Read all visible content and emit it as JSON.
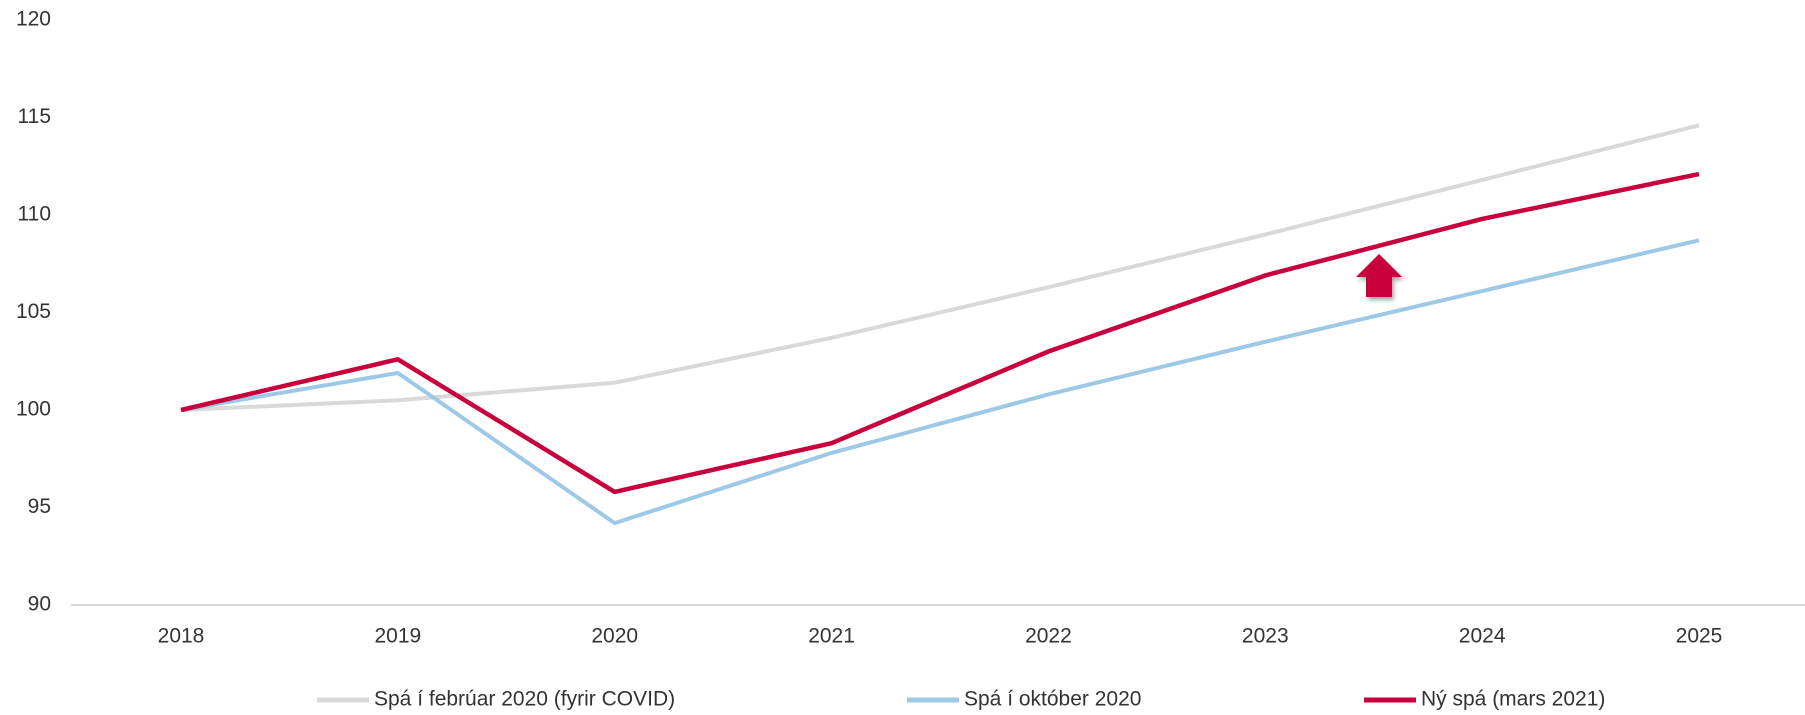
{
  "chart_data": {
    "type": "line",
    "categories": [
      "2018",
      "2019",
      "2020",
      "2021",
      "2022",
      "2023",
      "2024",
      "2025"
    ],
    "series": [
      {
        "name": "Spá í febrúar 2020 (fyrir COVID)",
        "color": "#d9d9d9",
        "values": [
          100,
          100.5,
          101.4,
          103.7,
          106.3,
          109,
          111.8,
          114.6
        ]
      },
      {
        "name": "Spá í október 2020",
        "color": "#9dc8e6",
        "values": [
          100,
          101.9,
          94.2,
          97.8,
          100.8,
          103.5,
          106.1,
          108.7
        ]
      },
      {
        "name": "Ný spá (mars 2021)",
        "color": "#c8003c",
        "values": [
          100,
          102.6,
          95.8,
          98.3,
          103,
          106.9,
          109.8,
          112.1
        ]
      }
    ],
    "ylim": [
      90,
      120
    ],
    "yticks": [
      90,
      95,
      100,
      105,
      110,
      115,
      120
    ],
    "grid": false,
    "legend": "bottom"
  }
}
